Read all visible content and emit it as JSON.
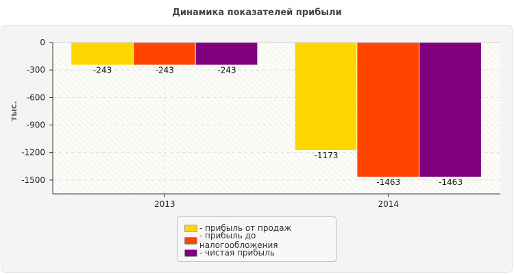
{
  "chart_data": {
    "type": "bar",
    "title": "Динамика показателей прибыли",
    "ylabel": "тыс.",
    "xlabel": "",
    "categories": [
      "2013",
      "2014"
    ],
    "series": [
      {
        "name": "- прибыль от продаж",
        "color": "#FFD700",
        "values": [
          -243,
          -1173
        ]
      },
      {
        "name": "- прибыль до налогообложения",
        "color": "#FF4500",
        "values": [
          -243,
          -1463
        ]
      },
      {
        "name": "- чистая прибыль",
        "color": "#800080",
        "values": [
          -243,
          -1463
        ]
      }
    ],
    "yticks": [
      "0",
      "-300",
      "-600",
      "-900",
      "-1200",
      "-1500"
    ],
    "ylim": [
      -1650,
      0
    ],
    "grid": true,
    "legend": "bottom"
  }
}
